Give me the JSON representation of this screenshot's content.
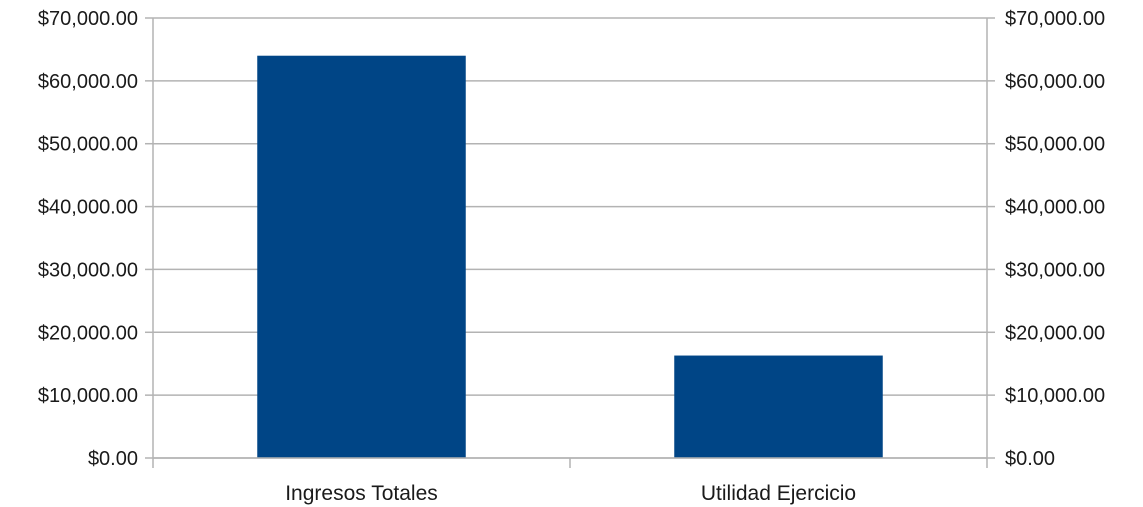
{
  "chart_data": {
    "type": "bar",
    "categories": [
      "Ingresos Totales",
      "Utilidad Ejercicio"
    ],
    "values": [
      64000,
      16300
    ],
    "ylim": [
      0,
      70000
    ],
    "yticks": [
      0,
      10000,
      20000,
      30000,
      40000,
      50000,
      60000,
      70000
    ],
    "ytick_labels": [
      "$0.00",
      "$10,000.00",
      "$20,000.00",
      "$30,000.00",
      "$40,000.00",
      "$50,000.00",
      "$60,000.00",
      "$70,000.00"
    ],
    "secondary_axis": true,
    "grid": true,
    "legend": "none",
    "bar_color": "#004586"
  }
}
